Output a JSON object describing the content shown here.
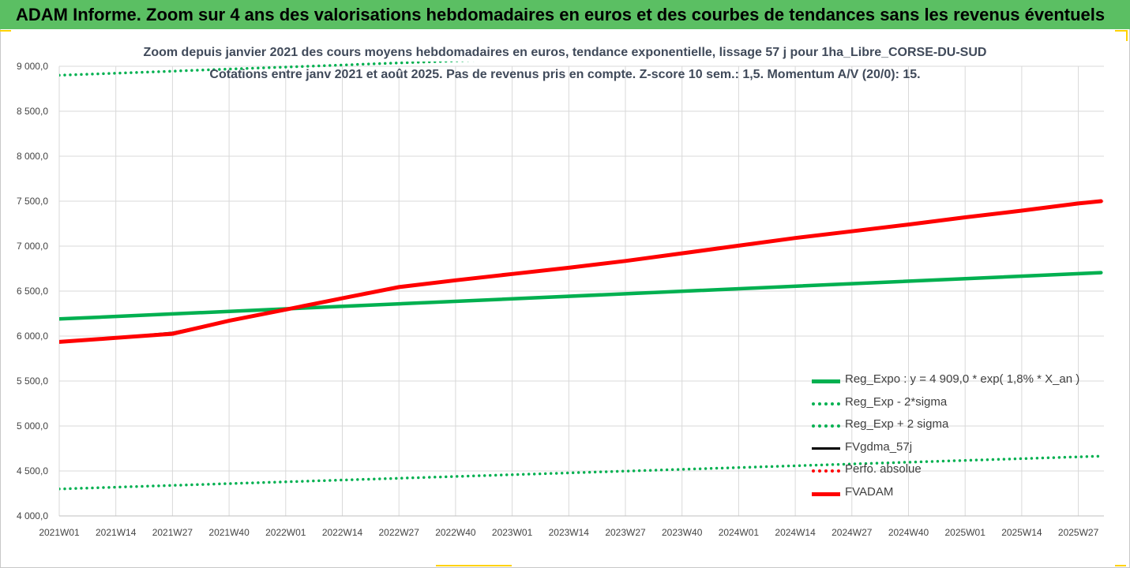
{
  "banner": {
    "title": "ADAM Informe. Zoom sur 4 ans des valorisations hebdomadaires en euros et des courbes de tendances sans les revenus éventuels"
  },
  "colors": {
    "banner": "#5bbf63",
    "trend": "#00b050",
    "band": "#00b050",
    "gdma": "#000000",
    "perfo": "#ff0000",
    "adam": "#ff0000",
    "grid": "#d9d9d9"
  },
  "chart_data": {
    "type": "line",
    "title": "Zoom depuis janvier 2021 des cours moyens hebdomadaires en euros, tendance exponentielle, lissage 57 j pour 1ha_Libre_CORSE-DU-SUD",
    "subtitle": "Cotations entre janv 2021 et août 2025. Pas de revenus pris en compte. Z-score 10 sem.: 1,5. Momentum A/V (20/0): 15.",
    "xlabel": "",
    "ylabel": "",
    "ylim": [
      4000,
      9000
    ],
    "yticks": [
      "9 000,0",
      "8 500,0",
      "8 000,0",
      "7 500,0",
      "7 000,0",
      "6 500,0",
      "6 000,0",
      "5 500,0",
      "5 000,0",
      "4 500,0",
      "4 000,0"
    ],
    "categories": [
      "2021W01",
      "2021W14",
      "2021W27",
      "2021W40",
      "2022W01",
      "2022W14",
      "2022W27",
      "2022W40",
      "2023W01",
      "2023W14",
      "2023W27",
      "2023W40",
      "2024W01",
      "2024W14",
      "2024W27",
      "2024W40",
      "2025W01",
      "2025W14",
      "2025W27"
    ],
    "grid": true,
    "legend_position": "bottom-right",
    "series": [
      {
        "name": "Reg_Expo : y = 4 909,0 * exp( 1,8% *  X_an )",
        "style": "solid-thick",
        "color": "#00b050",
        "x": [
          0,
          18.4
        ],
        "values": [
          6190,
          6705
        ]
      },
      {
        "name": "Reg_Exp - 2*sigma",
        "style": "dotted",
        "color": "#00b050",
        "x": [
          0,
          18.4
        ],
        "values": [
          4300,
          4665
        ]
      },
      {
        "name": "Reg_Exp + 2 sigma",
        "style": "dotted",
        "color": "#00b050",
        "x": [
          0,
          18.4
        ],
        "values": [
          8900,
          9320
        ]
      },
      {
        "name": "FVgdma_57j",
        "style": "solid-thin",
        "color": "#000000",
        "x": [
          0,
          1,
          2,
          3,
          4,
          5,
          6,
          7,
          8,
          9,
          10,
          11,
          12,
          13,
          14,
          15,
          16,
          17,
          18,
          18.4
        ],
        "values": [
          5935,
          5985,
          6040,
          6175,
          6300,
          6420,
          6540,
          6620,
          6690,
          6760,
          6835,
          6920,
          7005,
          7090,
          7165,
          7240,
          7320,
          7395,
          7470,
          7495
        ]
      },
      {
        "name": "Perfo. absolue",
        "style": "dotted",
        "color": "#ff0000",
        "x": [],
        "values": []
      },
      {
        "name": "FVADAM",
        "style": "solid-thick",
        "color": "#ff0000",
        "x": [
          0,
          1,
          2,
          3,
          4,
          5,
          6,
          7,
          8,
          9,
          10,
          11,
          12,
          13,
          14,
          15,
          16,
          17,
          18,
          18.4
        ],
        "values": [
          5935,
          5980,
          6025,
          6170,
          6295,
          6420,
          6545,
          6620,
          6690,
          6760,
          6835,
          6920,
          7005,
          7090,
          7165,
          7240,
          7320,
          7395,
          7475,
          7500
        ]
      }
    ]
  }
}
